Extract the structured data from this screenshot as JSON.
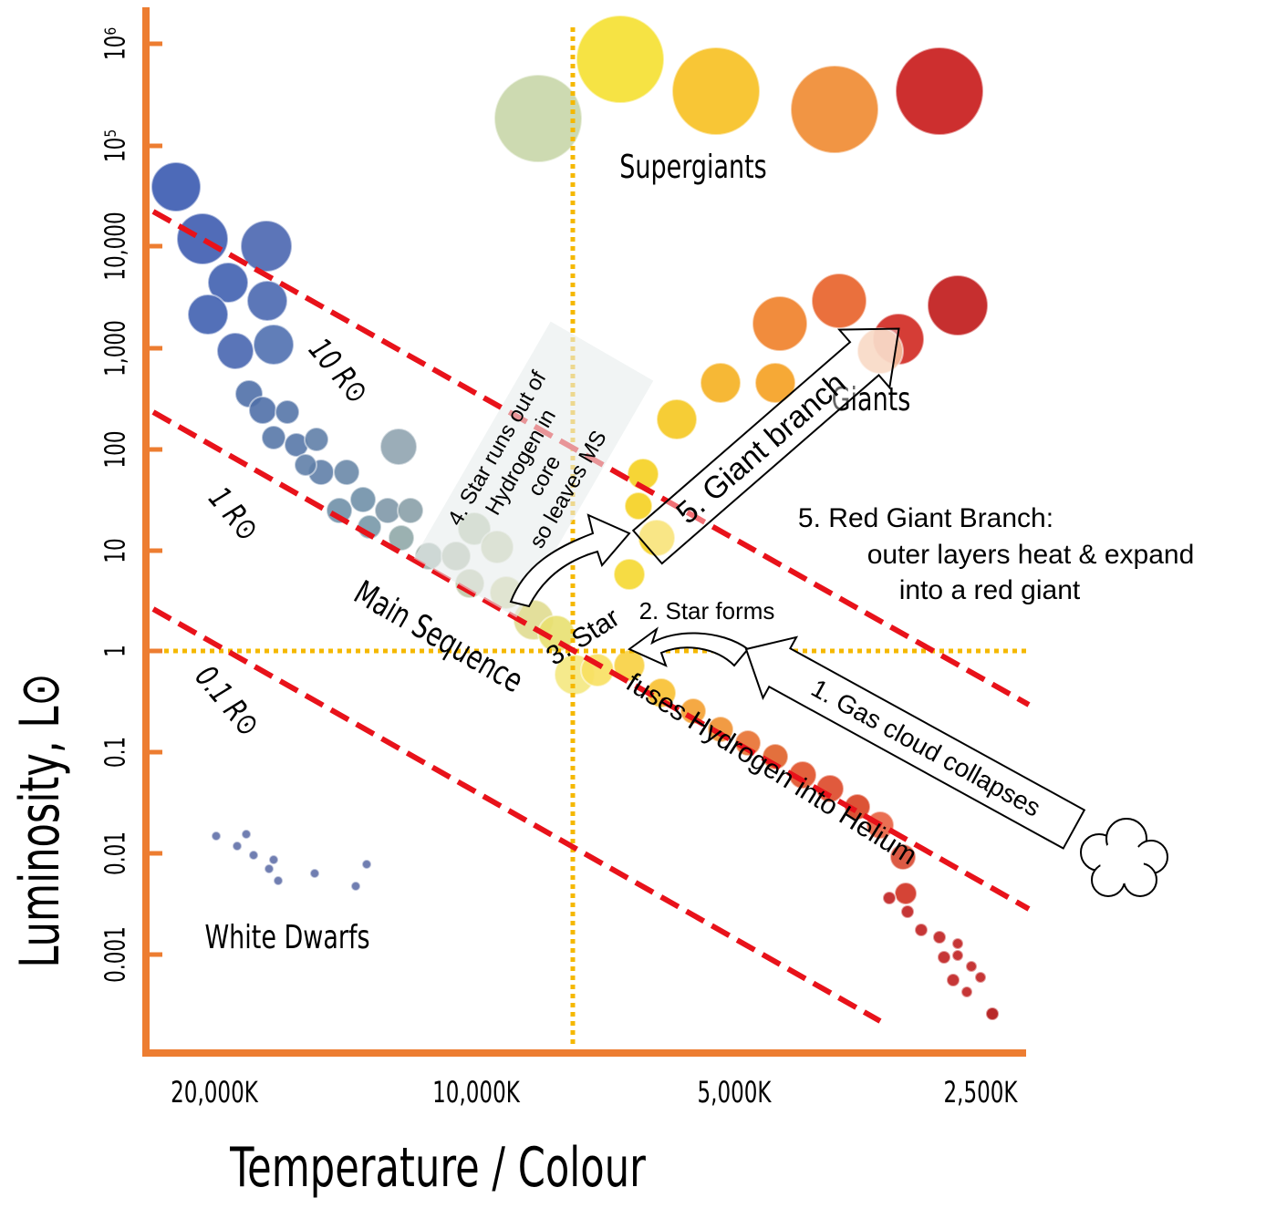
{
  "y_axis": {
    "title": "Luminosity, L⊙",
    "ticks": [
      "10⁶",
      "10⁵",
      "10,000",
      "1,000",
      "100",
      "10",
      "1",
      "0.1",
      "0.01",
      "0.001"
    ]
  },
  "x_axis": {
    "title": "Temperature / Colour",
    "ticks": [
      "20,000K",
      "10,000K",
      "5,000K",
      "2,500K"
    ]
  },
  "regions": {
    "supergiants": "Supergiants",
    "giants": "Giants",
    "white_dwarfs": "White Dwarfs",
    "main_sequence": "Main Sequence"
  },
  "radius_lines": [
    "10 R⊙",
    "1 R⊙",
    "0.1 R⊙"
  ],
  "stages": {
    "gas_cloud": "1. Gas cloud collapses",
    "star_forms": "2. Star forms",
    "fuses": [
      "3. Star",
      "fuses Hydrogen into Helium"
    ],
    "runs_out": [
      "4. Star runs out of",
      "Hydrogen in",
      "core",
      "so leaves MS"
    ],
    "giant_branch": "5. Giant branch",
    "red_giant": [
      "5. Red Giant Branch:",
      "outer layers heat & expand",
      "into a red giant"
    ]
  }
}
